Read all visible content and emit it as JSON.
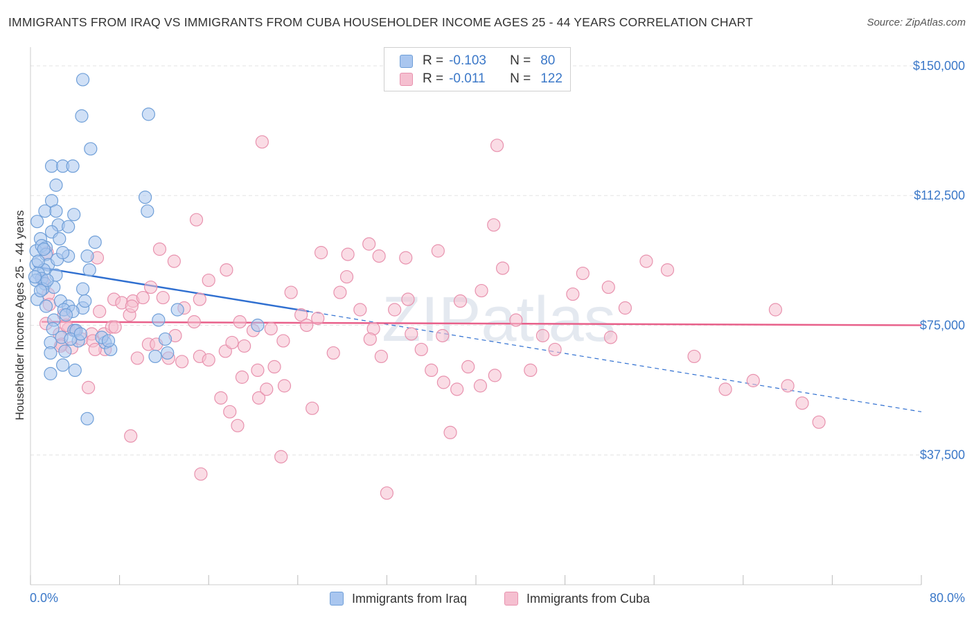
{
  "title": "IMMIGRANTS FROM IRAQ VS IMMIGRANTS FROM CUBA HOUSEHOLDER INCOME AGES 25 - 44 YEARS CORRELATION CHART",
  "source": "Source: ZipAtlas.com",
  "legend": {
    "iraq": {
      "r_label": "R =",
      "r_value": "-0.103",
      "n_label": "N =",
      "n_value": "80"
    },
    "cuba": {
      "r_label": "R =",
      "r_value": "-0.011",
      "n_label": "N =",
      "n_value": "122"
    }
  },
  "bottom_legend": {
    "iraq": "Immigrants from Iraq",
    "cuba": "Immigrants from Cuba"
  },
  "watermark": "ZIPatlas",
  "colors": {
    "iraq_fill": "#a9c6ef",
    "iraq_stroke": "#6f9fd8",
    "iraq_line": "#2f6fd0",
    "cuba_fill": "#f5bfd0",
    "cuba_stroke": "#e892ae",
    "cuba_line": "#e8608a",
    "axis_text": "#3b78c8",
    "grid": "#e3e3e3"
  },
  "chart_data": {
    "type": "scatter",
    "title": "IMMIGRANTS FROM IRAQ VS IMMIGRANTS FROM CUBA HOUSEHOLDER INCOME AGES 25 - 44 YEARS CORRELATION CHART",
    "xlabel": "",
    "ylabel": "Householder Income Ages 25 - 44 years",
    "xlim": [
      0,
      80
    ],
    "ylim": [
      0,
      154000
    ],
    "x_tick_labels": [
      "0.0%",
      "80.0%"
    ],
    "y_ticks": [
      37500,
      75000,
      112500,
      150000
    ],
    "y_tick_labels": [
      "$37,500",
      "$75,000",
      "$112,500",
      "$150,000"
    ],
    "grid": true,
    "legend_position": "top-center",
    "series": [
      {
        "name": "Immigrants from Iraq",
        "R": -0.103,
        "N": 80,
        "trend": {
          "x0": 0.3,
          "y0": 92000,
          "x1": 80,
          "y1": 50000,
          "solid_until_x": 25
        },
        "points": [
          [
            4.7,
            146000
          ],
          [
            4.6,
            135500
          ],
          [
            10.6,
            136000
          ],
          [
            5.4,
            126000
          ],
          [
            1.9,
            121000
          ],
          [
            2.9,
            121000
          ],
          [
            3.8,
            121000
          ],
          [
            10.3,
            112000
          ],
          [
            2.3,
            115500
          ],
          [
            1.3,
            108000
          ],
          [
            1.9,
            111000
          ],
          [
            2.3,
            108000
          ],
          [
            3.9,
            107000
          ],
          [
            10.5,
            108000
          ],
          [
            0.6,
            105000
          ],
          [
            2.5,
            104000
          ],
          [
            3.4,
            103500
          ],
          [
            1.9,
            102000
          ],
          [
            0.9,
            100000
          ],
          [
            2.6,
            100000
          ],
          [
            5.8,
            99000
          ],
          [
            1.4,
            97500
          ],
          [
            0.5,
            96500
          ],
          [
            1.0,
            98000
          ],
          [
            1.4,
            95500
          ],
          [
            3.4,
            95000
          ],
          [
            5.1,
            95000
          ],
          [
            1.6,
            92500
          ],
          [
            0.5,
            92500
          ],
          [
            1.2,
            91000
          ],
          [
            0.7,
            90000
          ],
          [
            5.3,
            91000
          ],
          [
            2.3,
            89500
          ],
          [
            1.0,
            88500
          ],
          [
            0.5,
            88000
          ],
          [
            1.3,
            87000
          ],
          [
            2.1,
            86000
          ],
          [
            4.7,
            85500
          ],
          [
            1.1,
            85500
          ],
          [
            0.6,
            82500
          ],
          [
            2.7,
            82000
          ],
          [
            1.4,
            80500
          ],
          [
            3.4,
            80500
          ],
          [
            4.7,
            80000
          ],
          [
            3.0,
            79500
          ],
          [
            3.8,
            79000
          ],
          [
            3.2,
            78000
          ],
          [
            2.1,
            76500
          ],
          [
            11.5,
            76500
          ],
          [
            13.2,
            79500
          ],
          [
            20.4,
            75000
          ],
          [
            3.9,
            73500
          ],
          [
            4.1,
            73500
          ],
          [
            2.8,
            71500
          ],
          [
            1.8,
            70000
          ],
          [
            4.3,
            70500
          ],
          [
            6.7,
            70000
          ],
          [
            7.2,
            68000
          ],
          [
            1.8,
            67000
          ],
          [
            3.1,
            67500
          ],
          [
            11.2,
            66000
          ],
          [
            12.3,
            67000
          ],
          [
            12.1,
            71000
          ],
          [
            2.9,
            63500
          ],
          [
            4.0,
            62000
          ],
          [
            1.8,
            61000
          ],
          [
            5.1,
            48000
          ],
          [
            0.7,
            93500
          ],
          [
            1.5,
            88000
          ],
          [
            2.4,
            94000
          ],
          [
            0.9,
            85000
          ],
          [
            2.0,
            74000
          ],
          [
            3.6,
            71000
          ],
          [
            4.5,
            72500
          ],
          [
            6.4,
            71500
          ],
          [
            1.2,
            97000
          ],
          [
            2.9,
            96000
          ],
          [
            0.4,
            89000
          ],
          [
            4.9,
            82000
          ],
          [
            7.0,
            70500
          ]
        ]
      },
      {
        "name": "Immigrants from Cuba",
        "R": -0.011,
        "N": 122,
        "trend": {
          "x0": 1.0,
          "y0": 76000,
          "x1": 80,
          "y1": 75000,
          "solid_until_x": 80
        },
        "points": [
          [
            1.5,
            96000
          ],
          [
            6.0,
            94500
          ],
          [
            1.1,
            88000
          ],
          [
            1.6,
            84000
          ],
          [
            7.5,
            82500
          ],
          [
            8.2,
            81500
          ],
          [
            9.2,
            82000
          ],
          [
            10.1,
            83000
          ],
          [
            6.2,
            79000
          ],
          [
            8.9,
            78000
          ],
          [
            3.0,
            78000
          ],
          [
            1.4,
            75500
          ],
          [
            3.4,
            74000
          ],
          [
            4.0,
            73500
          ],
          [
            5.5,
            72500
          ],
          [
            6.6,
            72500
          ],
          [
            7.3,
            74500
          ],
          [
            9.1,
            80500
          ],
          [
            2.6,
            72500
          ],
          [
            4.6,
            71000
          ],
          [
            5.6,
            70500
          ],
          [
            2.8,
            69500
          ],
          [
            3.7,
            68500
          ],
          [
            6.7,
            68000
          ],
          [
            9.6,
            65500
          ],
          [
            10.6,
            69500
          ],
          [
            11.3,
            69500
          ],
          [
            12.4,
            65500
          ],
          [
            13.6,
            64500
          ],
          [
            15.2,
            66000
          ],
          [
            16.0,
            65000
          ],
          [
            17.5,
            67500
          ],
          [
            18.1,
            70000
          ],
          [
            19.0,
            60000
          ],
          [
            20.4,
            62000
          ],
          [
            21.9,
            63000
          ],
          [
            11.6,
            97000
          ],
          [
            12.9,
            93500
          ],
          [
            10.8,
            86000
          ],
          [
            11.9,
            83000
          ],
          [
            13.8,
            80000
          ],
          [
            15.2,
            82500
          ],
          [
            16.0,
            88000
          ],
          [
            17.6,
            91000
          ],
          [
            18.8,
            76000
          ],
          [
            19.2,
            69000
          ],
          [
            20.0,
            73500
          ],
          [
            21.6,
            74000
          ],
          [
            23.4,
            84500
          ],
          [
            24.3,
            78000
          ],
          [
            25.8,
            77000
          ],
          [
            27.8,
            84500
          ],
          [
            29.6,
            79500
          ],
          [
            30.8,
            74000
          ],
          [
            31.5,
            66000
          ],
          [
            32.7,
            79500
          ],
          [
            28.4,
            89000
          ],
          [
            27.2,
            67000
          ],
          [
            22.7,
            70500
          ],
          [
            14.7,
            76000
          ],
          [
            14.9,
            105500
          ],
          [
            20.8,
            128000
          ],
          [
            26.1,
            96000
          ],
          [
            28.5,
            95500
          ],
          [
            30.4,
            98500
          ],
          [
            31.3,
            95000
          ],
          [
            33.7,
            94500
          ],
          [
            37.0,
            72000
          ],
          [
            38.6,
            82000
          ],
          [
            40.5,
            85000
          ],
          [
            41.6,
            104000
          ],
          [
            42.4,
            91500
          ],
          [
            46.0,
            72000
          ],
          [
            47.1,
            68000
          ],
          [
            48.7,
            84000
          ],
          [
            49.6,
            90000
          ],
          [
            51.9,
            86000
          ],
          [
            52.1,
            71500
          ],
          [
            53.4,
            80000
          ],
          [
            55.3,
            93500
          ],
          [
            57.2,
            91000
          ],
          [
            59.6,
            66000
          ],
          [
            62.4,
            56500
          ],
          [
            64.9,
            59000
          ],
          [
            66.9,
            79500
          ],
          [
            68.0,
            57500
          ],
          [
            69.3,
            52500
          ],
          [
            70.8,
            47000
          ],
          [
            34.2,
            72500
          ],
          [
            35.1,
            68000
          ],
          [
            37.1,
            58500
          ],
          [
            38.3,
            56500
          ],
          [
            36.0,
            62000
          ],
          [
            39.3,
            63000
          ],
          [
            36.6,
            96500
          ],
          [
            37.7,
            44000
          ],
          [
            40.4,
            57500
          ],
          [
            41.7,
            60500
          ],
          [
            43.6,
            76500
          ],
          [
            44.9,
            62000
          ],
          [
            9.0,
            43000
          ],
          [
            15.3,
            32000
          ],
          [
            22.5,
            37000
          ],
          [
            25.3,
            51000
          ],
          [
            32.0,
            26500
          ],
          [
            41.9,
            127000
          ],
          [
            33.9,
            82500
          ],
          [
            30.5,
            71000
          ],
          [
            7.6,
            74500
          ],
          [
            17.1,
            54000
          ],
          [
            17.9,
            50000
          ],
          [
            18.6,
            46000
          ],
          [
            20.5,
            54000
          ],
          [
            21.2,
            56500
          ],
          [
            22.8,
            57500
          ],
          [
            5.2,
            57000
          ],
          [
            3.2,
            75000
          ],
          [
            1.7,
            81000
          ],
          [
            2.7,
            69000
          ],
          [
            5.8,
            68000
          ],
          [
            13.0,
            72000
          ],
          [
            24.8,
            75000
          ]
        ]
      }
    ]
  }
}
